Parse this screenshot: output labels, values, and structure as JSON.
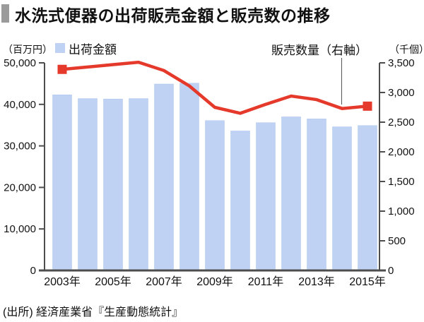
{
  "title": "水洗式便器の出荷販売金額と販売数の推移",
  "source": "(出所) 経済産業省『生産動態統計』",
  "colors": {
    "bar": "#bfd2f4",
    "line": "#e5392b",
    "axis": "#4d4d4d",
    "title_marker": "#9b9b9b"
  },
  "chart_data": {
    "type": "combo-bar-line",
    "title": "水洗式便器の出荷販売金額と販売数の推移",
    "categories": [
      "2003年",
      "2004年",
      "2005年",
      "2006年",
      "2007年",
      "2008年",
      "2009年",
      "2010年",
      "2011年",
      "2012年",
      "2013年",
      "2014年",
      "2015年"
    ],
    "x_tick_labels": [
      "2003年",
      "2005年",
      "2007年",
      "2009年",
      "2011年",
      "2013年",
      "2015年"
    ],
    "x_tick_every": 2,
    "series": [
      {
        "name": "出荷金額",
        "type": "bar",
        "axis": "left",
        "color": "#bfd2f4",
        "values": [
          42300,
          41400,
          41300,
          41400,
          44900,
          45100,
          36100,
          33600,
          35600,
          37000,
          36500,
          34600,
          34900
        ]
      },
      {
        "name": "販売数量（右軸）",
        "type": "line",
        "axis": "right",
        "color": "#e5392b",
        "marker": "square-at-ends",
        "values": [
          3390,
          3430,
          3470,
          3510,
          3370,
          3110,
          2750,
          2650,
          2800,
          2940,
          2880,
          2730,
          2770
        ]
      }
    ],
    "left_axis": {
      "unit": "（百万円）",
      "min": 0,
      "max": 50000,
      "step": 10000
    },
    "right_axis": {
      "unit": "（千個）",
      "min": 0,
      "max": 3500,
      "step": 500
    },
    "grid": false,
    "legend_position": "top-left"
  }
}
